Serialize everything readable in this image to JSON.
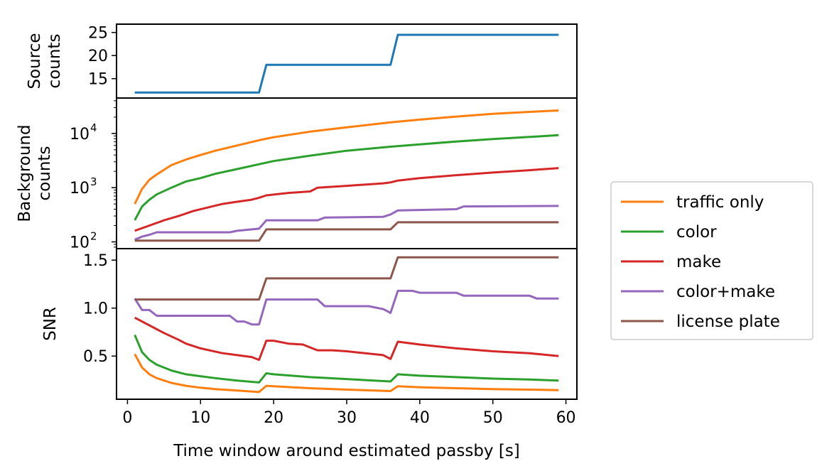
{
  "chart_data": [
    {
      "type": "line",
      "ylabel_lines": [
        "Source",
        "counts"
      ],
      "xlim": [
        -1.5,
        61.5
      ],
      "ylim": [
        10.8,
        26.8
      ],
      "yticks": [
        15,
        20,
        25
      ],
      "yticklabels": [
        "15",
        "20",
        "25"
      ],
      "series": [
        {
          "color": "#1f77b4",
          "x": [
            1,
            18,
            19,
            36,
            37,
            59
          ],
          "y": [
            12,
            12,
            18,
            18,
            24.5,
            24.5
          ]
        }
      ]
    },
    {
      "type": "line",
      "yscale": "log",
      "ylabel_lines": [
        "Background",
        "counts"
      ],
      "xlim": [
        -1.5,
        61.5
      ],
      "ylim": [
        75,
        45000
      ],
      "yticks": [
        100,
        1000,
        10000
      ],
      "yticklabels_base": [
        "10",
        "10",
        "10"
      ],
      "yticklabels_exp": [
        "2",
        "3",
        "4"
      ],
      "series": [
        {
          "name": "traffic only",
          "color": "#ff7f0e",
          "x": [
            1,
            2,
            3,
            4,
            6,
            8,
            10,
            12,
            15,
            18,
            20,
            25,
            30,
            36,
            40,
            45,
            50,
            55,
            59
          ],
          "y": [
            500,
            950,
            1400,
            1750,
            2600,
            3300,
            4000,
            4800,
            6000,
            7500,
            8500,
            10800,
            13000,
            16000,
            18000,
            20500,
            23000,
            25000,
            26500
          ]
        },
        {
          "name": "color",
          "color": "#2ca02c",
          "x": [
            1,
            2,
            3,
            4,
            6,
            8,
            10,
            12,
            15,
            18,
            20,
            25,
            30,
            36,
            40,
            45,
            50,
            55,
            59
          ],
          "y": [
            250,
            450,
            600,
            750,
            1000,
            1300,
            1500,
            1800,
            2200,
            2700,
            3100,
            3900,
            4800,
            5700,
            6300,
            7100,
            7900,
            8600,
            9300
          ]
        },
        {
          "name": "make",
          "color": "#d62728",
          "x": [
            1,
            3,
            5,
            7,
            9,
            11,
            13,
            15,
            17,
            18,
            19,
            22,
            25,
            26,
            30,
            35,
            36,
            37,
            40,
            45,
            50,
            55,
            59
          ],
          "y": [
            160,
            200,
            250,
            300,
            370,
            430,
            500,
            550,
            600,
            650,
            720,
            800,
            850,
            1000,
            1080,
            1200,
            1250,
            1350,
            1500,
            1700,
            1900,
            2100,
            2300
          ]
        },
        {
          "name": "color+make",
          "color": "#9467bd",
          "x": [
            1,
            2,
            3,
            4,
            14,
            15,
            17,
            18,
            19,
            26,
            27,
            35,
            36,
            37,
            45,
            46,
            59
          ],
          "y": [
            110,
            125,
            135,
            150,
            150,
            160,
            170,
            175,
            250,
            250,
            280,
            290,
            320,
            380,
            400,
            450,
            460
          ]
        },
        {
          "name": "license plate",
          "color": "#8c564b",
          "x": [
            1,
            18,
            19,
            36,
            37,
            59
          ],
          "y": [
            105,
            105,
            170,
            170,
            230,
            230
          ]
        }
      ]
    },
    {
      "type": "line",
      "ylabel": "SNR",
      "xlabel": "Time window around estimated passby [s]",
      "xlim": [
        -1.5,
        61.5
      ],
      "ylim": [
        0.05,
        1.62
      ],
      "xticks": [
        0,
        10,
        20,
        30,
        40,
        50,
        60
      ],
      "xticklabels": [
        "0",
        "10",
        "20",
        "30",
        "40",
        "50",
        "60"
      ],
      "yticks": [
        0.5,
        1.0,
        1.5
      ],
      "yticklabels": [
        "0.5",
        "1.0",
        "1.5"
      ],
      "series": [
        {
          "name": "traffic only",
          "color": "#ff7f0e",
          "x": [
            1,
            2,
            3,
            4,
            6,
            8,
            10,
            12,
            15,
            18,
            19,
            20,
            25,
            30,
            36,
            37,
            40,
            45,
            50,
            55,
            59
          ],
          "y": [
            0.52,
            0.38,
            0.31,
            0.27,
            0.22,
            0.19,
            0.17,
            0.155,
            0.14,
            0.125,
            0.19,
            0.185,
            0.165,
            0.15,
            0.135,
            0.185,
            0.175,
            0.165,
            0.155,
            0.15,
            0.145
          ]
        },
        {
          "name": "color",
          "color": "#2ca02c",
          "x": [
            1,
            2,
            3,
            4,
            6,
            8,
            10,
            12,
            15,
            18,
            19,
            20,
            25,
            30,
            36,
            37,
            40,
            45,
            50,
            55,
            59
          ],
          "y": [
            0.72,
            0.54,
            0.46,
            0.41,
            0.35,
            0.31,
            0.29,
            0.27,
            0.245,
            0.225,
            0.32,
            0.31,
            0.28,
            0.26,
            0.235,
            0.31,
            0.295,
            0.28,
            0.265,
            0.255,
            0.245
          ]
        },
        {
          "name": "make",
          "color": "#d62728",
          "x": [
            1,
            3,
            5,
            7,
            8,
            10,
            13,
            15,
            17,
            18,
            19,
            20,
            22,
            24,
            25,
            26,
            28,
            30,
            35,
            36,
            37,
            40,
            45,
            50,
            55,
            59
          ],
          "y": [
            0.9,
            0.82,
            0.74,
            0.67,
            0.63,
            0.58,
            0.53,
            0.51,
            0.49,
            0.46,
            0.66,
            0.66,
            0.63,
            0.62,
            0.59,
            0.56,
            0.56,
            0.55,
            0.51,
            0.47,
            0.65,
            0.62,
            0.58,
            0.55,
            0.53,
            0.5
          ]
        },
        {
          "name": "color+make",
          "color": "#9467bd",
          "x": [
            1,
            2,
            3,
            4,
            14,
            15,
            16,
            17,
            18,
            19,
            26,
            27,
            33,
            35,
            36,
            37,
            39,
            40,
            45,
            46,
            55,
            56,
            59
          ],
          "y": [
            1.1,
            0.98,
            0.98,
            0.92,
            0.92,
            0.86,
            0.86,
            0.83,
            0.83,
            1.09,
            1.09,
            1.02,
            1.02,
            0.99,
            0.95,
            1.18,
            1.18,
            1.16,
            1.16,
            1.13,
            1.13,
            1.1,
            1.1
          ]
        },
        {
          "name": "license plate",
          "color": "#8c564b",
          "x": [
            1,
            18,
            19,
            36,
            37,
            59
          ],
          "y": [
            1.09,
            1.09,
            1.31,
            1.31,
            1.53,
            1.53
          ]
        }
      ]
    }
  ],
  "legend": {
    "placement": "right",
    "items": [
      {
        "label": "traffic only",
        "color": "#ff7f0e"
      },
      {
        "label": "color",
        "color": "#2ca02c"
      },
      {
        "label": "make",
        "color": "#d62728"
      },
      {
        "label": "color+make",
        "color": "#9467bd"
      },
      {
        "label": "license plate",
        "color": "#8c564b"
      }
    ]
  }
}
